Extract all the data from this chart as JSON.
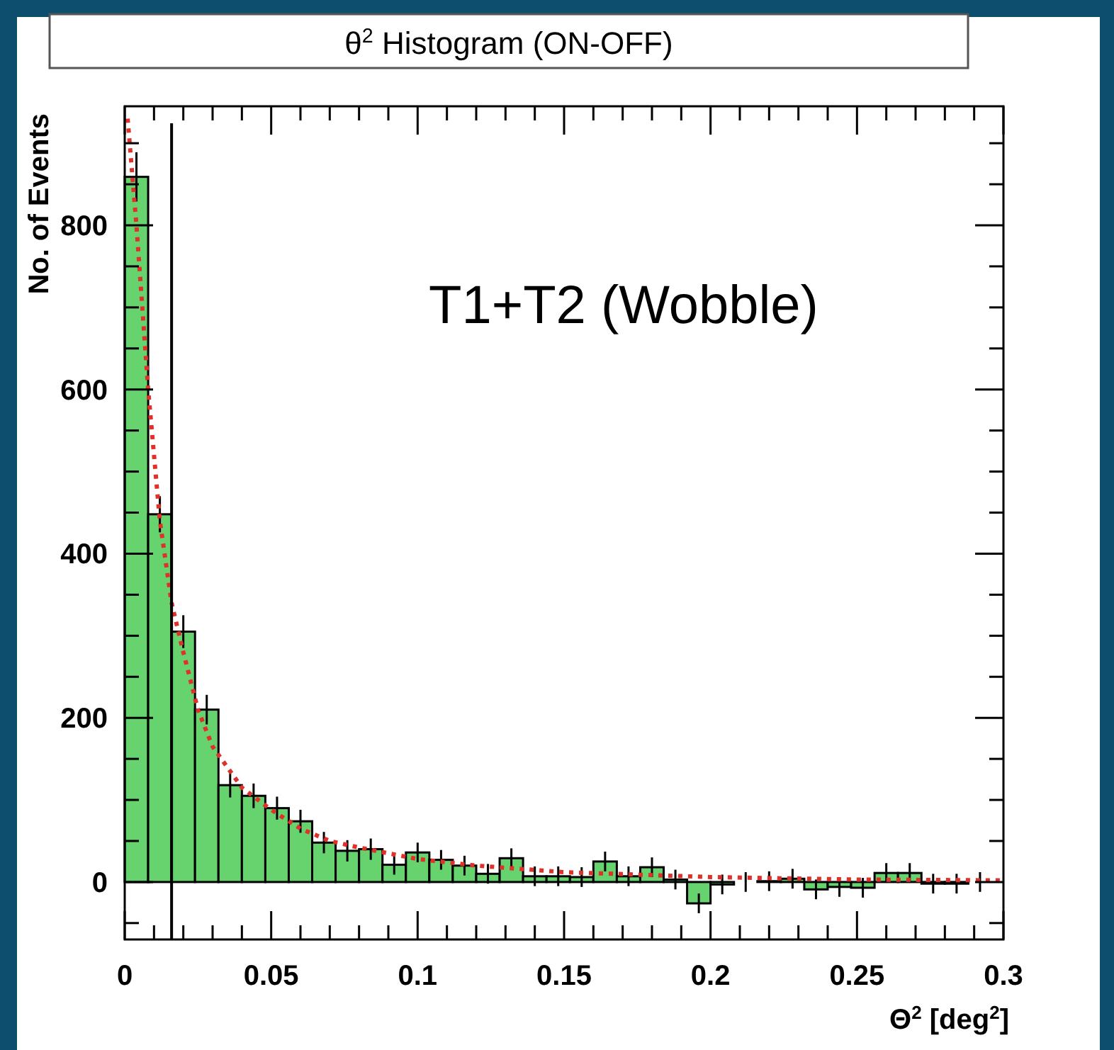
{
  "chart_data": {
    "type": "histogram",
    "title": "θ$^{2}$ Histogram  (ON-OFF)",
    "xlabel": "Θ$^{2}$ [deg$^{2}$]",
    "ylabel": "No. of Events",
    "annotations": [
      "T1+T2 (Wobble)"
    ],
    "bins": [
      0,
      0.008,
      0.016,
      0.024,
      0.032,
      0.04,
      0.048,
      0.056,
      0.064,
      0.072,
      0.08,
      0.088,
      0.096,
      0.104,
      0.112,
      0.12,
      0.128,
      0.136,
      0.144,
      0.152,
      0.16,
      0.168,
      0.176,
      0.184,
      0.192,
      0.2,
      0.208,
      0.216,
      0.224,
      0.232,
      0.24,
      0.248,
      0.256,
      0.264,
      0.272,
      0.28,
      0.288,
      0.296
    ],
    "values": [
      859,
      448,
      305,
      210,
      118,
      105,
      90,
      74,
      48,
      38,
      40,
      21,
      36,
      27,
      20,
      10,
      29,
      7,
      7,
      6,
      25,
      7,
      18,
      3,
      -26,
      -3,
      0,
      1,
      4,
      -9,
      -6,
      -7,
      11,
      11,
      -2,
      -2,
      0
    ],
    "errors": [
      30,
      22,
      20,
      18,
      15,
      15,
      14,
      14,
      13,
      13,
      13,
      12,
      12,
      12,
      12,
      12,
      12,
      12,
      12,
      12,
      12,
      12,
      12,
      12,
      12,
      12,
      12,
      12,
      12,
      12,
      12,
      12,
      12,
      12,
      12,
      12,
      12
    ],
    "color": "#66d36e",
    "series": [
      {
        "type": "line",
        "color": "#e0302a",
        "line_style": "dotted",
        "x": [
          0.001,
          0.004,
          0.008,
          0.012,
          0.016,
          0.02,
          0.025,
          0.03,
          0.04,
          0.05,
          0.06,
          0.07,
          0.08,
          0.1,
          0.12,
          0.15,
          0.2,
          0.25,
          0.3
        ],
        "values": [
          930,
          800,
          600,
          440,
          340,
          280,
          210,
          165,
          115,
          88,
          65,
          50,
          42,
          28,
          20,
          12,
          6,
          3,
          2
        ]
      }
    ],
    "ref_lines": [
      {
        "axis": "x",
        "value": 0.016,
        "color": "#000000"
      }
    ],
    "xlim": [
      0,
      0.3
    ],
    "ylim": [
      -70,
      945
    ],
    "xticks": [
      0,
      {
        "value": 0.01,
        "label": null
      },
      {
        "value": 0.02,
        "label": null
      },
      {
        "value": 0.03,
        "label": null
      },
      {
        "value": 0.04,
        "label": null
      },
      0.05,
      {
        "value": 0.06,
        "label": null
      },
      {
        "value": 0.07,
        "label": null
      },
      {
        "value": 0.08,
        "label": null
      },
      {
        "value": 0.09,
        "label": null
      },
      0.1,
      {
        "value": 0.11,
        "label": null
      },
      {
        "value": 0.12,
        "label": null
      },
      {
        "value": 0.13,
        "label": null
      },
      {
        "value": 0.14,
        "label": null
      },
      0.15,
      {
        "value": 0.16,
        "label": null
      },
      {
        "value": 0.17,
        "label": null
      },
      {
        "value": 0.18,
        "label": null
      },
      {
        "value": 0.19,
        "label": null
      },
      0.2,
      {
        "value": 0.21,
        "label": null
      },
      {
        "value": 0.22,
        "label": null
      },
      {
        "value": 0.23,
        "label": null
      },
      {
        "value": 0.24,
        "label": null
      },
      0.25,
      {
        "value": 0.26,
        "label": null
      },
      {
        "value": 0.27,
        "label": null
      },
      {
        "value": 0.28,
        "label": null
      },
      {
        "value": 0.29,
        "label": null
      },
      0.3
    ],
    "yticks": [
      {
        "value": -50,
        "label": null
      },
      0,
      {
        "value": 50,
        "label": null
      },
      {
        "value": 100,
        "label": null
      },
      {
        "value": 150,
        "label": null
      },
      200,
      {
        "value": 250,
        "label": null
      },
      {
        "value": 300,
        "label": null
      },
      {
        "value": 350,
        "label": null
      },
      400,
      {
        "value": 450,
        "label": null
      },
      {
        "value": 500,
        "label": null
      },
      {
        "value": 550,
        "label": null
      },
      600,
      {
        "value": 650,
        "label": null
      },
      {
        "value": 700,
        "label": null
      },
      {
        "value": 750,
        "label": null
      },
      800,
      {
        "value": 850,
        "label": null
      },
      {
        "value": 900,
        "label": null
      }
    ]
  }
}
